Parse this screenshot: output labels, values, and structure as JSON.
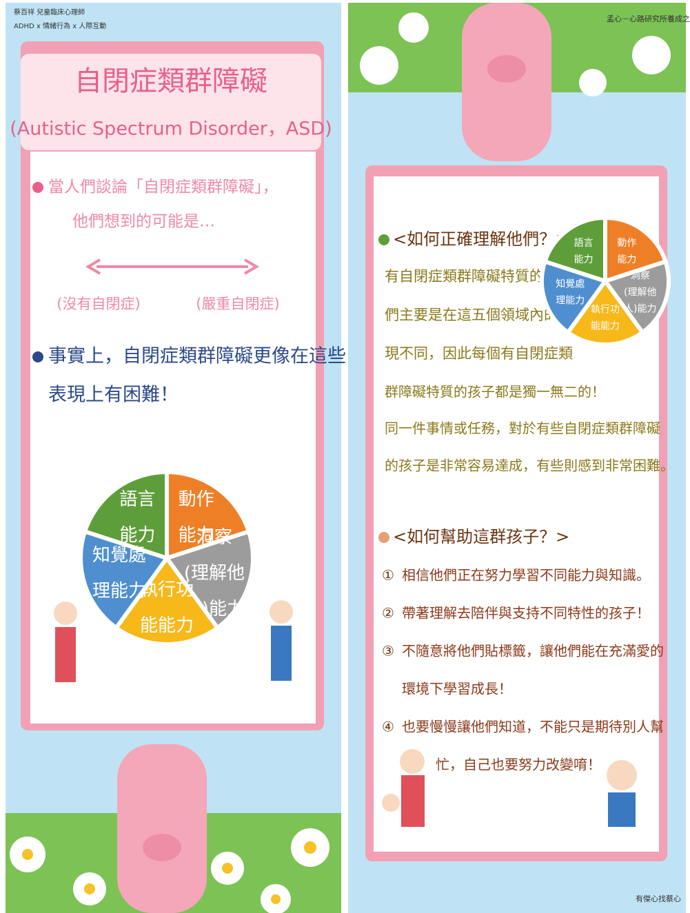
{
  "left": {
    "header": {
      "author": "蔡百祥 兒童臨床心理師",
      "tags": "ADHD x 情緒行為 x 人際互動"
    },
    "title": "自閉症類群障礙",
    "subtitle": "(Autistic Spectrum Disorder，ASD)",
    "intro": [
      "當人們談論「自閉症類群障礙」，",
      "他們想到的可能是…"
    ],
    "spectrum": {
      "left": "(沒有自閉症)",
      "right": "(嚴重自閉症)"
    },
    "fact": [
      "事實上，自閉症類群障礙更像在這些",
      "表現上有困難！"
    ],
    "domains": [
      {
        "lines": [
          "語言",
          "能力"
        ],
        "color": "#5e9e3a"
      },
      {
        "lines": [
          "動作",
          "能力"
        ],
        "color": "#ef7f27"
      },
      {
        "lines": [
          "洞察",
          "(理解他",
          "人)能力"
        ],
        "color": "#9c9c9c"
      },
      {
        "lines": [
          "執行功",
          "能能力"
        ],
        "color": "#f7b81a"
      },
      {
        "lines": [
          "知覺處",
          "理能力"
        ],
        "color": "#4f8fcf"
      }
    ]
  },
  "right": {
    "header": "孟心－心路研究所養成之路",
    "section1": {
      "title": "<如何正確理解他們？>",
      "lines": [
        "有自閉症類群障礙特質的孩子",
        "們主要是在這五個領域內的表",
        "現不同，因此每個有自閉症類",
        "群障礙特質的孩子都是獨一無二的！",
        "同一件事情或任務，對於有些自閉症類群障礙",
        "的孩子是非常容易達成，有些則感到非常困難。"
      ]
    },
    "section2": {
      "title": "<如何幫助這群孩子？>",
      "items": [
        {
          "marker": "①",
          "lines": [
            "相信他們正在努力學習不同能力與知識。"
          ]
        },
        {
          "marker": "②",
          "lines": [
            "帶著理解去陪伴與支持不同特性的孩子！"
          ]
        },
        {
          "marker": "③",
          "lines": [
            "不隨意將他們貼標籤，讓他們能在充滿愛的",
            "環境下學習成長！"
          ]
        },
        {
          "marker": "④",
          "lines": [
            "也要慢慢讓他們知道，不能只是期待別人幫",
            "忙，自己也要努力改變唷！"
          ]
        }
      ]
    },
    "footer": "有傑心找蔡心"
  }
}
